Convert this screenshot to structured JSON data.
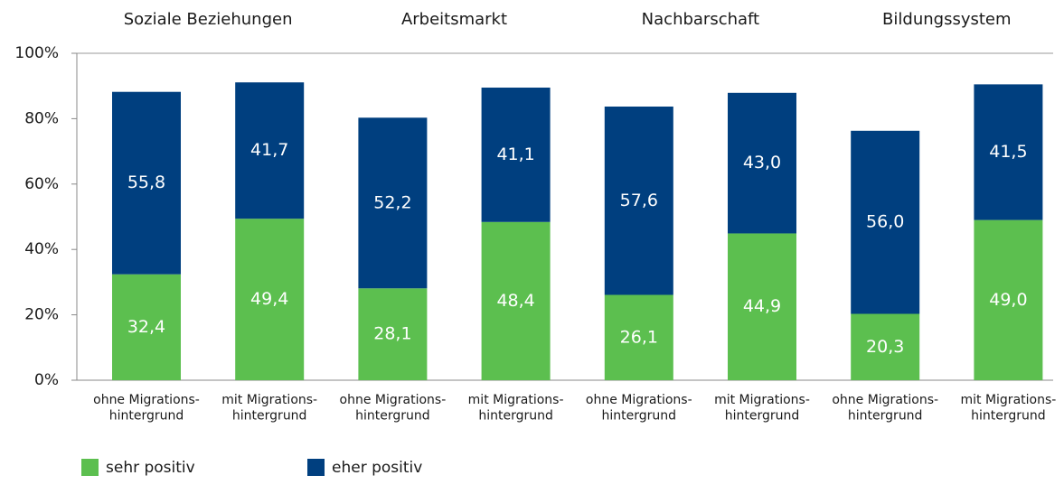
{
  "chart_data": {
    "type": "stacked_bar",
    "group_labels": [
      "Soziale Beziehungen",
      "Arbeitsmarkt",
      "Nachbarschaft",
      "Bildungssystem"
    ],
    "categories": [
      "ohne Migrations-\nhintergrund",
      "mit Migrations-\nhintergrund",
      "ohne Migrations-\nhintergrund",
      "mit Migrations-\nhintergrund",
      "ohne Migrations-\nhintergrund",
      "mit Migrations-\nhintergrund",
      "ohne Migrations-\nhintergrund",
      "mit Migrations-\nhintergrund"
    ],
    "series": [
      {
        "name": "sehr positiv",
        "color": "#5cbf4f",
        "values": [
          32.4,
          49.4,
          28.1,
          48.4,
          26.1,
          44.9,
          20.3,
          49.0
        ],
        "value_labels": [
          "32,4",
          "49,4",
          "28,1",
          "48,4",
          "26,1",
          "44,9",
          "20,3",
          "49,0"
        ]
      },
      {
        "name": "eher positiv",
        "color": "#003f7f",
        "values": [
          55.8,
          41.7,
          52.2,
          41.1,
          57.6,
          43.0,
          56.0,
          41.5
        ],
        "value_labels": [
          "55,8",
          "41,7",
          "52,2",
          "41,1",
          "57,6",
          "43,0",
          "56,0",
          "41,5"
        ]
      }
    ],
    "ylim": [
      0,
      100
    ],
    "yticks": [
      {
        "value": 0,
        "label": "0%"
      },
      {
        "value": 20,
        "label": "20%"
      },
      {
        "value": 40,
        "label": "40%"
      },
      {
        "value": 60,
        "label": "60%"
      },
      {
        "value": 80,
        "label": "80%"
      },
      {
        "value": 100,
        "label": "100%"
      }
    ]
  }
}
